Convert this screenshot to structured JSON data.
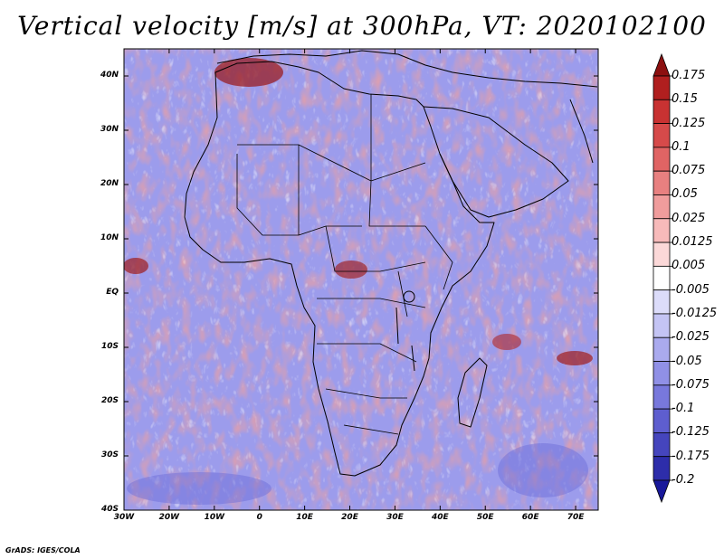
{
  "title": "Vertical velocity [m/s] at 300hPa, VT: 2020102100",
  "credit": "GrADS: IGES/COLA",
  "map": {
    "region": "Africa",
    "lon_range": [
      -30,
      75
    ],
    "lat_range": [
      -40,
      45
    ],
    "lat_labels": [
      "40N",
      "30N",
      "20N",
      "10N",
      "EQ",
      "10S",
      "20S",
      "30S",
      "40S"
    ],
    "lat_values": [
      40,
      30,
      20,
      10,
      0,
      -10,
      -20,
      -30,
      -40
    ],
    "lon_labels": [
      "30W",
      "20W",
      "10W",
      "0",
      "10E",
      "20E",
      "30E",
      "40E",
      "50E",
      "60E",
      "70E"
    ],
    "lon_values": [
      -30,
      -20,
      -10,
      0,
      10,
      20,
      30,
      40,
      50,
      60,
      70
    ]
  },
  "colorbar": {
    "labels": [
      "0.175",
      "0.15",
      "0.125",
      "0.1",
      "0.075",
      "0.05",
      "0.025",
      "0.0125",
      "0.005",
      "-0.005",
      "-0.0125",
      "-0.025",
      "-0.05",
      "-0.075",
      "-0.1",
      "-0.125",
      "-0.175",
      "-0.2"
    ],
    "colors": [
      "#8c1010",
      "#b01f1f",
      "#c83232",
      "#d64a4a",
      "#e06464",
      "#e88080",
      "#f09c9c",
      "#f7baba",
      "#fbd8d8",
      "#ffffff",
      "#dcdcfa",
      "#c4c4f4",
      "#aaaaee",
      "#9090e6",
      "#7878dc",
      "#5e5ecf",
      "#4545bd",
      "#2d2daa",
      "#18189a"
    ]
  }
}
